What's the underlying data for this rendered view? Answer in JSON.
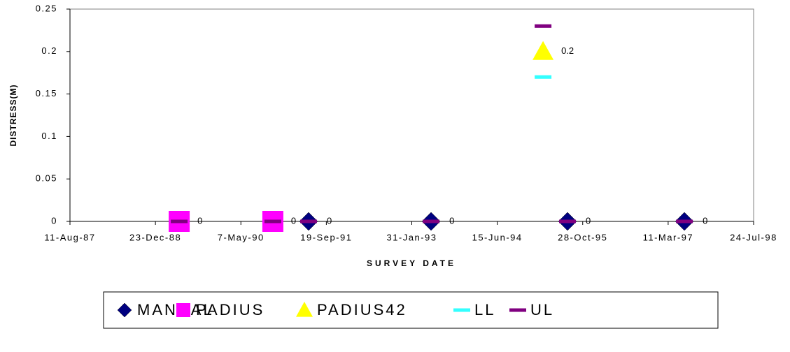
{
  "chart_data": {
    "type": "scatter",
    "xlabel": "SURVEY DATE",
    "ylabel": "DISTRESS(M)",
    "xlim": [
      32000,
      36000
    ],
    "xticks": [
      {
        "value": 32000,
        "label": "11-Aug-87"
      },
      {
        "value": 32500,
        "label": "23-Dec-88"
      },
      {
        "value": 33000,
        "label": "7-May-90"
      },
      {
        "value": 33500,
        "label": "19-Sep-91"
      },
      {
        "value": 34000,
        "label": "31-Jan-93"
      },
      {
        "value": 34500,
        "label": "15-Jun-94"
      },
      {
        "value": 35000,
        "label": "28-Oct-95"
      },
      {
        "value": 35500,
        "label": "11-Mar-97"
      },
      {
        "value": 36000,
        "label": "24-Jul-98"
      }
    ],
    "ylim": [
      0,
      0.25
    ],
    "yticks": [
      0,
      0.05,
      0.1,
      0.15,
      0.2,
      0.25
    ],
    "legend": "bottom",
    "series": [
      {
        "name": "MANUAL",
        "marker": "diamond",
        "color": "#000080",
        "data_labels": true,
        "x": [
          33396,
          34113,
          34911,
          35595
        ],
        "values": [
          0,
          0,
          0,
          0
        ]
      },
      {
        "name": "PADIUS",
        "marker": "square",
        "color": "#ff00ff",
        "data_labels": true,
        "x": [
          32639,
          33187
        ],
        "values": [
          0,
          0
        ]
      },
      {
        "name": "PADIUS42",
        "marker": "triangle",
        "color": "#ffff00",
        "data_labels": true,
        "x": [
          34768
        ],
        "values": [
          0.2
        ]
      },
      {
        "name": "LL",
        "marker": "dash",
        "color": "#33ffff",
        "data_labels": false,
        "x": [
          32639,
          33187,
          33396,
          34113,
          34911,
          35595,
          34768
        ],
        "values": [
          0,
          0,
          0,
          0,
          0,
          0,
          0.17
        ]
      },
      {
        "name": "UL",
        "marker": "dash",
        "color": "#800080",
        "data_labels": false,
        "x": [
          32639,
          33187,
          33396,
          34113,
          34911,
          35595,
          34768
        ],
        "values": [
          0,
          0,
          0,
          0,
          0,
          0,
          0.23
        ]
      }
    ]
  }
}
